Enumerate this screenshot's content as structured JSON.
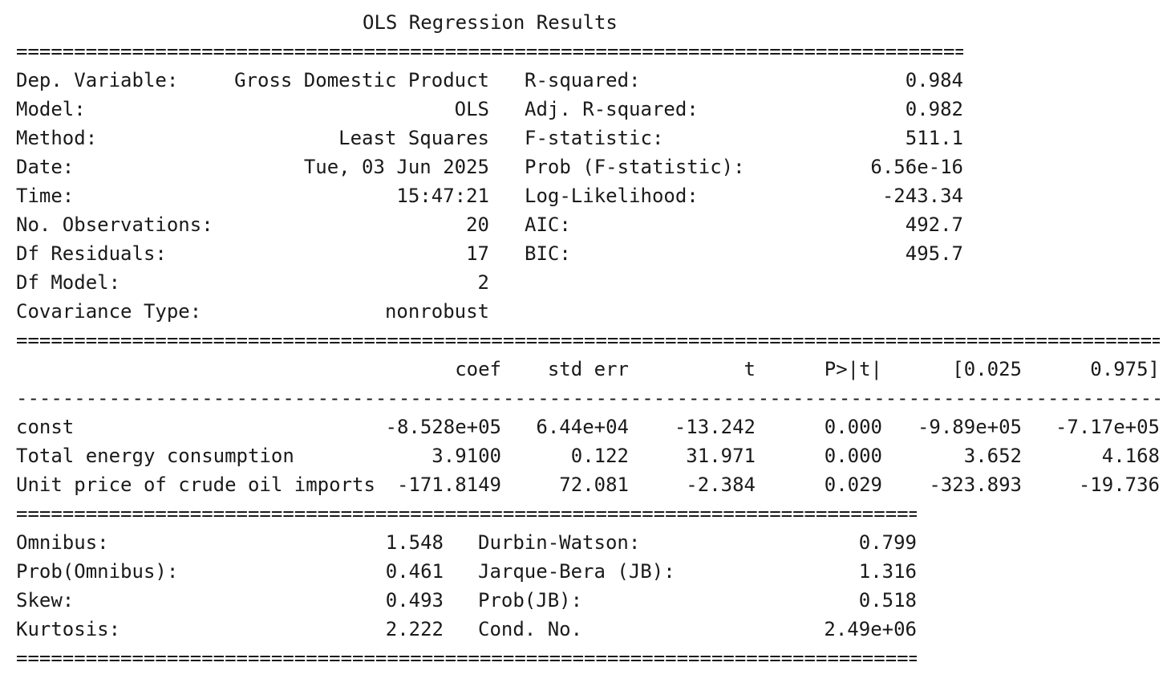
{
  "title": "OLS Regression Results",
  "rules": {
    "double_short": "==========================================================================================",
    "double_long": "==============================================================================================================",
    "dash_long": "--------------------------------------------------------------------------------------------------------------"
  },
  "summary": {
    "left": [
      {
        "label": "Dep. Variable:",
        "value": "Gross Domestic Product"
      },
      {
        "label": "Model:",
        "value": "OLS"
      },
      {
        "label": "Method:",
        "value": "Least Squares"
      },
      {
        "label": "Date:",
        "value": "Tue, 03 Jun 2025"
      },
      {
        "label": "Time:",
        "value": "15:47:21"
      },
      {
        "label": "No. Observations:",
        "value": "20"
      },
      {
        "label": "Df Residuals:",
        "value": "17"
      },
      {
        "label": "Df Model:",
        "value": "2"
      },
      {
        "label": "Covariance Type:",
        "value": "nonrobust"
      }
    ],
    "right": [
      {
        "label": "R-squared:",
        "value": "0.984"
      },
      {
        "label": "Adj. R-squared:",
        "value": "0.982"
      },
      {
        "label": "F-statistic:",
        "value": "511.1"
      },
      {
        "label": "Prob (F-statistic):",
        "value": "6.56e-16"
      },
      {
        "label": "Log-Likelihood:",
        "value": "-243.34"
      },
      {
        "label": "AIC:",
        "value": "492.7"
      },
      {
        "label": "BIC:",
        "value": "495.7"
      }
    ]
  },
  "coef_table": {
    "headers": [
      "coef",
      "std err",
      "t",
      "P>|t|",
      "[0.025",
      "0.975]"
    ],
    "rows": [
      {
        "name": "const",
        "values": [
          "-8.528e+05",
          "6.44e+04",
          "-13.242",
          "0.000",
          "-9.89e+05",
          "-7.17e+05"
        ]
      },
      {
        "name": "Total energy consumption",
        "values": [
          "3.9100",
          "0.122",
          "31.971",
          "0.000",
          "3.652",
          "4.168"
        ]
      },
      {
        "name": "Unit price of crude oil imports",
        "values": [
          "-171.8149",
          "72.081",
          "-2.384",
          "0.029",
          "-323.893",
          "-19.736"
        ]
      }
    ]
  },
  "diagnostics": {
    "left": [
      {
        "label": "Omnibus:",
        "value": "1.548"
      },
      {
        "label": "Prob(Omnibus):",
        "value": "0.461"
      },
      {
        "label": "Skew:",
        "value": "0.493"
      },
      {
        "label": "Kurtosis:",
        "value": "2.222"
      }
    ],
    "right": [
      {
        "label": "Durbin-Watson:",
        "value": "0.799"
      },
      {
        "label": "Jarque-Bera (JB):",
        "value": "1.316"
      },
      {
        "label": "Prob(JB):",
        "value": "0.518"
      },
      {
        "label": "Cond. No.",
        "value": "2.49e+06"
      }
    ]
  }
}
